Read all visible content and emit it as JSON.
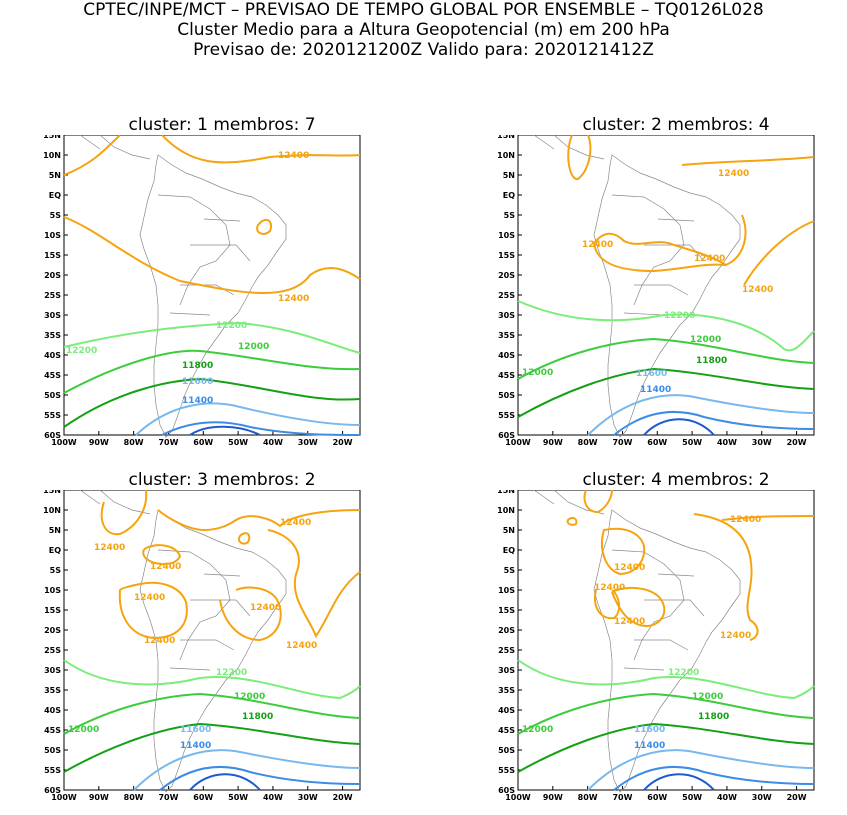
{
  "header": {
    "line1": "CPTEC/INPE/MCT – PREVISAO DE TEMPO GLOBAL POR ENSEMBLE – TQ0126L028",
    "line2": "Cluster Medio para a Altura Geopotencial (m) em 200 hPa",
    "line3": "Previsao de: 2020121200Z   Valido para: 2020121412Z"
  },
  "axes": {
    "lat_ticks": [
      "15N",
      "10N",
      "5N",
      "EQ",
      "5S",
      "10S",
      "15S",
      "20S",
      "25S",
      "30S",
      "35S",
      "40S",
      "45S",
      "50S",
      "55S",
      "60S"
    ],
    "lon_ticks": [
      "100W",
      "90W",
      "80W",
      "70W",
      "60W",
      "50W",
      "40W",
      "30W",
      "20W"
    ]
  },
  "colors": {
    "c12400": "#f5a40f",
    "c12200": "#7aed7a",
    "c12000": "#3ccc3c",
    "c11800": "#14a014",
    "c11600": "#78b8ee",
    "c11400": "#3c8ce6",
    "c11200": "#1e5ad2",
    "coast": "#8a8a8a"
  },
  "panels": [
    {
      "title": "cluster: 1   membros: 7",
      "labels": {
        "l12400a": "12400",
        "l12400b": "12400",
        "l12200": "12200",
        "l12200b": "12200",
        "l12000": "12000",
        "l11800": "11800",
        "l11600": "11600",
        "l11400": "11400"
      }
    },
    {
      "title": "cluster: 2   membros: 4",
      "labels": {
        "l12400a": "12400",
        "l12400b": "12400",
        "l12400c": "12400",
        "l12400d": "12400",
        "l12200": "12200",
        "l12000": "12000",
        "l12000b": "12000",
        "l11800": "11800",
        "l11600": "11600",
        "l11400": "11400"
      }
    },
    {
      "title": "cluster: 3   membros: 2",
      "labels": {
        "l12400a": "12400",
        "l12400b": "12400",
        "l12400c": "12400",
        "l12400d": "12400",
        "l12400e": "12400",
        "l12400f": "12400",
        "l12400g": "12400",
        "l12200": "12200",
        "l12000": "12000",
        "l12000b": "12000",
        "l11800": "11800",
        "l11600": "11600",
        "l11400": "11400"
      }
    },
    {
      "title": "cluster: 4   membros: 2",
      "labels": {
        "l12400a": "12400",
        "l12400b": "12400",
        "l12400c": "12400",
        "l12400d": "12400",
        "l12400e": "12400",
        "l12200": "12200",
        "l12000": "12000",
        "l12000b": "12000",
        "l11800": "11800",
        "l11600": "11600",
        "l11400": "11400"
      }
    }
  ]
}
